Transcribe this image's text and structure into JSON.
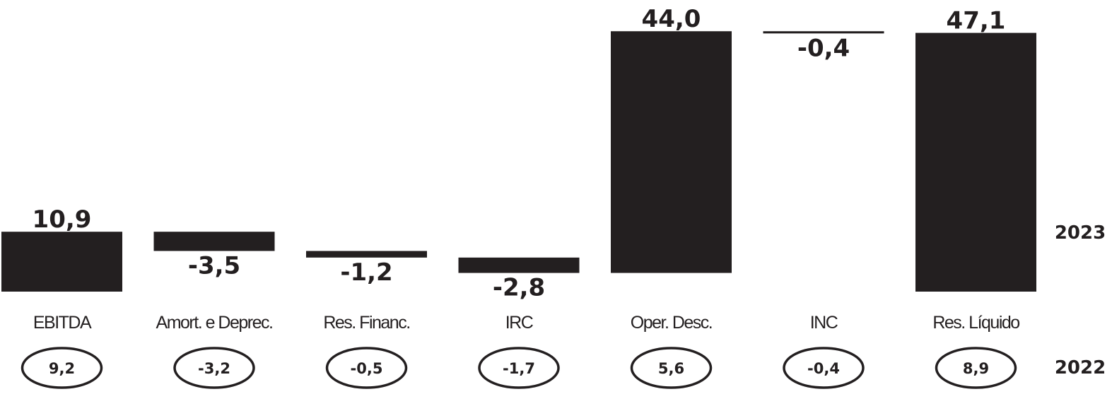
{
  "chart_data": {
    "type": "bar",
    "subtype": "waterfall",
    "categories": [
      "EBITDA",
      "Amort. e Deprec.",
      "Res. Financ.",
      "IRC",
      "Oper. Desc.",
      "INC",
      "Res. Líquido"
    ],
    "series": [
      {
        "name": "2023",
        "values": [
          10.9,
          -3.5,
          -1.2,
          -2.8,
          44.0,
          -0.4,
          47.1
        ],
        "value_labels": [
          "10,9",
          "-3,5",
          "-1,2",
          "-2,8",
          "44,0",
          "-0,4",
          "47,1"
        ],
        "kind": [
          "total",
          "delta",
          "delta",
          "delta",
          "delta",
          "delta",
          "total"
        ]
      },
      {
        "name": "2022",
        "values": [
          9.2,
          -3.2,
          -0.5,
          -1.7,
          5.6,
          -0.4,
          8.9
        ],
        "value_labels": [
          "9,2",
          "-3,2",
          "-0,5",
          "-1,7",
          "5,6",
          "-0,4",
          "8,9"
        ]
      }
    ],
    "year_labels": {
      "current": "2023",
      "previous": "2022"
    },
    "bar_color": "#231f20",
    "axes_visible": false,
    "grid": false
  }
}
